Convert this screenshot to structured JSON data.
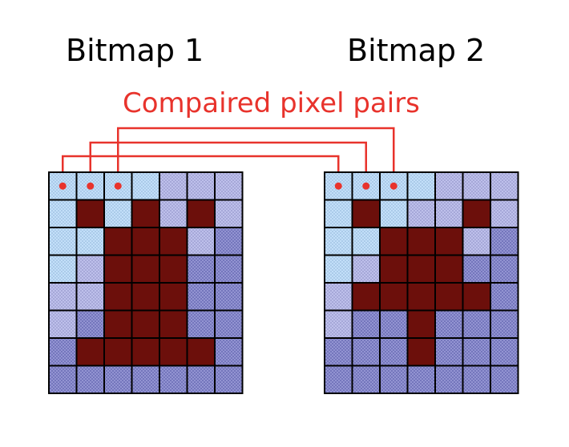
{
  "diagram": {
    "bitmap1_title": "Bitmap 1",
    "bitmap2_title": "Bitmap 2",
    "caption": "Compaired pixel pairs",
    "caption_color": "#e8332c",
    "connector_color": "#e8332c",
    "pixel_colors": {
      "L": "#b6d8f8",
      "M": "#b0b2e6",
      "D": "#7b7dc8",
      "R": "#6c0f0b"
    },
    "bitmaps": [
      {
        "name": "Bitmap 1",
        "rows": [
          "LLLLMMM",
          "LRLRMRM",
          "LLRRRMD",
          "LMRRRDD",
          "MMRRRDD",
          "MDRRRDD",
          "DRRRRRD",
          "DDDDDDD"
        ]
      },
      {
        "name": "Bitmap 2",
        "rows": [
          "LLLLMMM",
          "LRLMMRM",
          "LLRRRMD",
          "LMRRRDD",
          "MRRRRRD",
          "MDDRDDD",
          "DDDRDDD",
          "DDDDDDD"
        ]
      }
    ],
    "compared_pixel_pairs": 3
  }
}
